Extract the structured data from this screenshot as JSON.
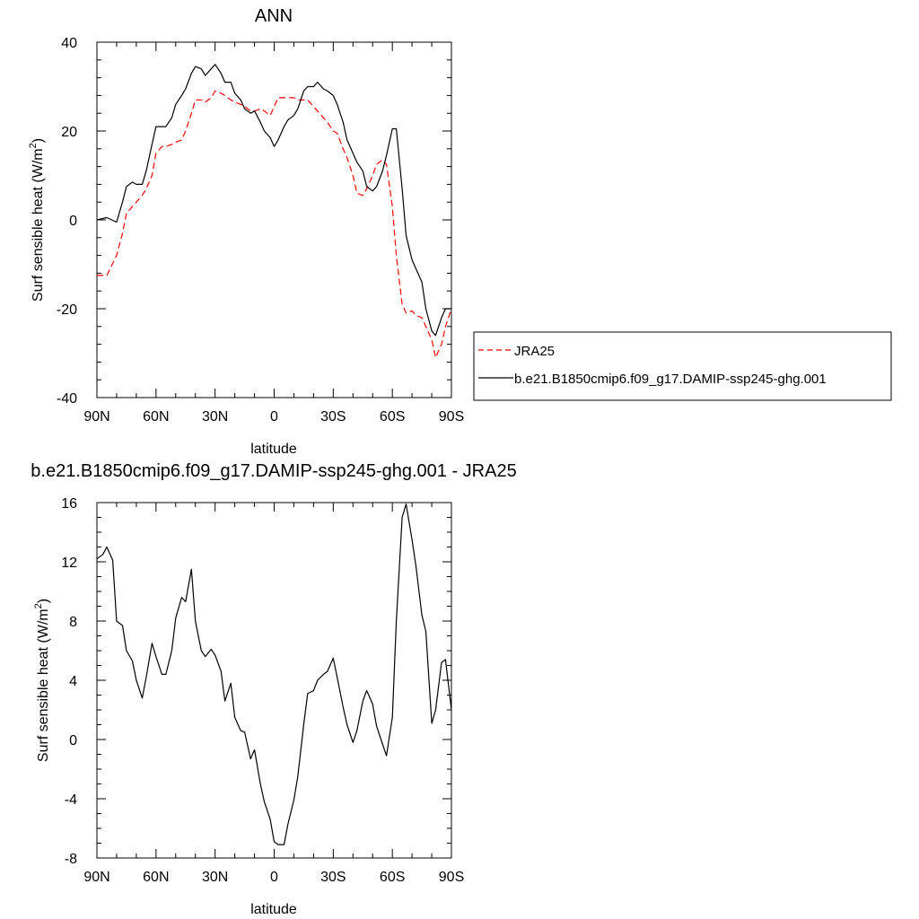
{
  "colors": {
    "jra": "#ff0000",
    "model": "#000000"
  },
  "chart_data": [
    {
      "type": "line",
      "title": "ANN",
      "xlabel": "latitude",
      "ylabel": "Surf sensible heat (W/m",
      "ylabel_sup": "2",
      "ylabel_close": ")",
      "xlim": [
        -90,
        90
      ],
      "ylim": [
        -40,
        40
      ],
      "xticks": [
        -90,
        -60,
        -30,
        0,
        30,
        60,
        90
      ],
      "xtick_labels": [
        "90N",
        "60N",
        "30N",
        "0",
        "30S",
        "60S",
        "90S"
      ],
      "yticks": [
        -40,
        -20,
        0,
        20,
        40
      ],
      "ytick_labels": [
        "-40",
        "-20",
        "0",
        "20",
        "40"
      ],
      "legend": {
        "position": "right",
        "entries": [
          "JRA25",
          "b.e21.B1850cmip6.f09_g17.DAMIP-ssp245-ghg.001"
        ]
      },
      "series": [
        {
          "name": "JRA25",
          "style": "dashed",
          "x": [
            -90,
            -85,
            -80,
            -77,
            -75,
            -72,
            -70,
            -67,
            -65,
            -62,
            -60,
            -57,
            -55,
            -52,
            -50,
            -47,
            -45,
            -42,
            -40,
            -37,
            -35,
            -32,
            -30,
            -27,
            -25,
            -22,
            -20,
            -17,
            -15,
            -12,
            -10,
            -7,
            -5,
            -2,
            0,
            2,
            5,
            7,
            10,
            12,
            15,
            17,
            20,
            22,
            25,
            27,
            30,
            32,
            35,
            37,
            40,
            42,
            45,
            47,
            50,
            52,
            55,
            57,
            60,
            62,
            65,
            67,
            70,
            72,
            75,
            77,
            80,
            82,
            85,
            87,
            90
          ],
          "y": [
            -12.5,
            -12.5,
            -8,
            -3,
            1.5,
            3,
            4,
            5.5,
            7,
            10,
            15,
            16.5,
            16.5,
            17,
            17.5,
            18,
            20,
            24,
            27,
            27,
            26.5,
            27.5,
            29,
            28.5,
            28,
            27,
            26.5,
            26,
            25.5,
            24.5,
            24.5,
            25,
            24.5,
            23.5,
            25.5,
            27.5,
            27.5,
            27.5,
            27.5,
            27,
            27,
            27,
            25.5,
            24.5,
            23,
            22,
            20,
            19.5,
            16,
            14,
            10,
            6,
            5.5,
            7,
            10,
            12.5,
            13.5,
            12.5,
            3,
            -8,
            -19,
            -21,
            -20.5,
            -21.5,
            -22,
            -24,
            -27,
            -31,
            -28,
            -24,
            -20
          ]
        },
        {
          "name": "b.e21.B1850cmip6.f09_g17.DAMIP-ssp245-ghg.001",
          "style": "solid",
          "x": [
            -90,
            -85,
            -80,
            -77,
            -75,
            -72,
            -70,
            -67,
            -65,
            -62,
            -60,
            -57,
            -55,
            -52,
            -50,
            -47,
            -45,
            -42,
            -40,
            -37,
            -35,
            -32,
            -30,
            -27,
            -25,
            -22,
            -20,
            -17,
            -15,
            -12,
            -10,
            -7,
            -5,
            -2,
            0,
            2,
            5,
            7,
            10,
            12,
            15,
            17,
            20,
            22,
            25,
            27,
            30,
            32,
            35,
            37,
            40,
            42,
            45,
            47,
            50,
            52,
            55,
            57,
            60,
            62,
            65,
            67,
            70,
            72,
            75,
            77,
            80,
            82,
            85,
            87,
            90
          ],
          "y": [
            0,
            0.5,
            -0.5,
            4,
            7.5,
            8.5,
            8,
            8,
            11,
            17,
            21,
            21,
            21,
            23,
            26,
            28,
            29.5,
            33,
            34.5,
            34,
            32.5,
            34,
            35,
            33,
            31,
            31,
            28.5,
            27,
            25,
            24,
            24.5,
            22,
            20,
            18.5,
            16.5,
            18,
            21,
            22.5,
            23.5,
            25,
            29,
            30,
            30,
            31,
            29.5,
            29,
            28,
            26,
            22,
            18,
            15,
            13,
            11,
            7.5,
            6.5,
            7.5,
            11,
            14.5,
            20.5,
            20.5,
            7,
            -3.5,
            -9,
            -11,
            -14,
            -20,
            -25,
            -26,
            -22,
            -20,
            -20
          ]
        }
      ]
    },
    {
      "type": "line",
      "title": "b.e21.B1850cmip6.f09_g17.DAMIP-ssp245-ghg.001 - JRA25",
      "xlabel": "latitude",
      "ylabel": "Surf sensible heat (W/m",
      "ylabel_sup": "2",
      "ylabel_close": ")",
      "xlim": [
        -90,
        90
      ],
      "ylim": [
        -8,
        16
      ],
      "xticks": [
        -90,
        -60,
        -30,
        0,
        30,
        60,
        90
      ],
      "xtick_labels": [
        "90N",
        "60N",
        "30N",
        "0",
        "30S",
        "60S",
        "90S"
      ],
      "yticks": [
        -8,
        -4,
        0,
        4,
        8,
        12,
        16
      ],
      "ytick_labels": [
        "-8",
        "-4",
        "0",
        "4",
        "8",
        "12",
        "16"
      ],
      "series": [
        {
          "style": "solid",
          "x": [
            -90,
            -87,
            -85,
            -82,
            -80,
            -77,
            -75,
            -72,
            -70,
            -67,
            -65,
            -62,
            -60,
            -57,
            -55,
            -52,
            -50,
            -47,
            -45,
            -42,
            -40,
            -37,
            -35,
            -32,
            -30,
            -27,
            -25,
            -22,
            -20,
            -17,
            -15,
            -12,
            -10,
            -7,
            -5,
            -2,
            0,
            2,
            5,
            7,
            10,
            12,
            15,
            17,
            20,
            22,
            25,
            27,
            30,
            32,
            35,
            37,
            40,
            42,
            45,
            47,
            50,
            52,
            55,
            57,
            60,
            62,
            65,
            67,
            70,
            72,
            75,
            77,
            80,
            82,
            85,
            87,
            90
          ],
          "y": [
            12.2,
            12.5,
            13,
            12.1,
            8,
            7.7,
            6,
            5.3,
            4,
            2.8,
            4.2,
            6.5,
            5.6,
            4.4,
            4.4,
            6,
            8.2,
            9.6,
            9.3,
            11.5,
            8,
            6,
            5.6,
            6.1,
            5.7,
            4.6,
            2.6,
            3.8,
            1.5,
            0.6,
            0.5,
            -1.3,
            -0.7,
            -3,
            -4.2,
            -5.4,
            -6.9,
            -7.1,
            -7.1,
            -5.7,
            -4.1,
            -2.5,
            1,
            3.1,
            3.3,
            4,
            4.4,
            4.6,
            5.5,
            4.2,
            2.2,
            1,
            -0.2,
            0.6,
            2.6,
            3.3,
            2.4,
            0.9,
            -0.3,
            -1.1,
            1.5,
            8,
            15,
            15.9,
            13.5,
            11.7,
            8.4,
            7.3,
            1.1,
            2,
            5.2,
            5.4,
            2
          ]
        }
      ]
    }
  ]
}
